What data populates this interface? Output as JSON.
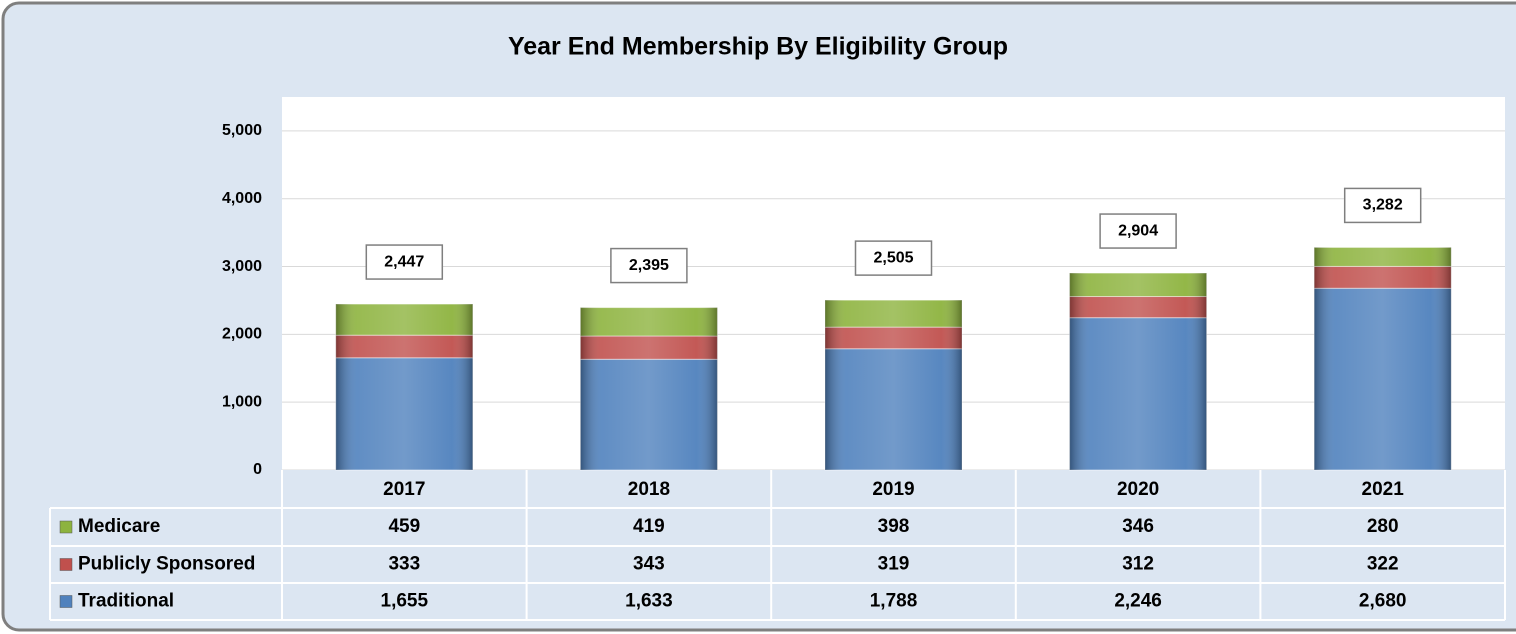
{
  "chart_data": {
    "type": "stacked_bar",
    "title": "Year End Membership By Eligibility Group",
    "categories": [
      "2017",
      "2018",
      "2019",
      "2020",
      "2021"
    ],
    "series": [
      {
        "name": "Traditional",
        "color": "#4f81bd",
        "values": [
          1655,
          1633,
          1788,
          2246,
          2680
        ],
        "value_labels": [
          "1,655",
          "1,633",
          "1,788",
          "2,246",
          "2,680"
        ]
      },
      {
        "name": "Publicly Sponsored",
        "color": "#c0504d",
        "values": [
          333,
          343,
          319,
          312,
          322
        ]
      },
      {
        "name": "Medicare",
        "color": "#8db33e",
        "values": [
          459,
          419,
          398,
          346,
          280
        ]
      }
    ],
    "totals": [
      2447,
      2395,
      2505,
      2904,
      3282
    ],
    "total_labels": [
      "2,447",
      "2,395",
      "2,505",
      "2,904",
      "3,282"
    ],
    "ylim": [
      0,
      5500
    ],
    "yticks": [
      0,
      {
        "value": 1000,
        "label": "1,000"
      },
      {
        "value": 2000,
        "label": "2,000"
      },
      {
        "value": 3000,
        "label": "3,000"
      },
      {
        "value": 4000,
        "label": "4,000"
      },
      {
        "value": 5000,
        "label": "5,000"
      }
    ],
    "grid": true
  }
}
